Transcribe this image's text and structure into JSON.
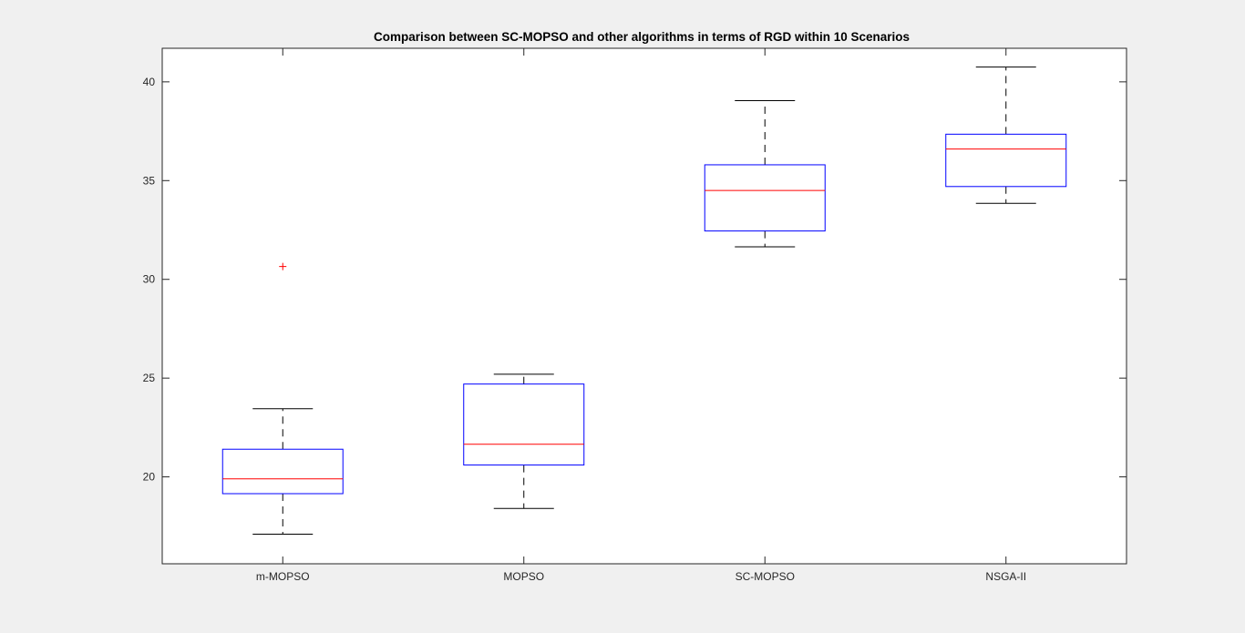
{
  "colors": {
    "background": "#f0f0f0",
    "axes_background": "#ffffff",
    "axes_line": "#262626",
    "box": "#0000ff",
    "median": "#ff0000",
    "whisker": "#000000",
    "outlier": "#ff0000"
  },
  "chart_data": {
    "type": "boxplot",
    "title": "Comparison between SC-MOPSO and other algorithms in terms of RGD within 10 Scenarios",
    "xlabel": "",
    "ylabel": "",
    "ylim": [
      15.6,
      41.7
    ],
    "yticks": [
      20,
      25,
      30,
      35,
      40
    ],
    "grid": false,
    "categories": [
      "m-MOPSO",
      "MOPSO",
      "SC-MOPSO",
      "NSGA-II"
    ],
    "boxes": [
      {
        "category": "m-MOPSO",
        "whisker_low": 17.1,
        "q1": 19.15,
        "median": 19.9,
        "q3": 21.4,
        "whisker_high": 23.45,
        "outliers": [
          30.65
        ]
      },
      {
        "category": "MOPSO",
        "whisker_low": 18.4,
        "q1": 20.6,
        "median": 21.65,
        "q3": 24.7,
        "whisker_high": 25.2,
        "outliers": []
      },
      {
        "category": "SC-MOPSO",
        "whisker_low": 31.65,
        "q1": 32.45,
        "median": 34.5,
        "q3": 35.8,
        "whisker_high": 39.05,
        "outliers": []
      },
      {
        "category": "NSGA-II",
        "whisker_low": 33.85,
        "q1": 34.7,
        "median": 36.6,
        "q3": 37.35,
        "whisker_high": 40.75,
        "outliers": []
      }
    ]
  }
}
